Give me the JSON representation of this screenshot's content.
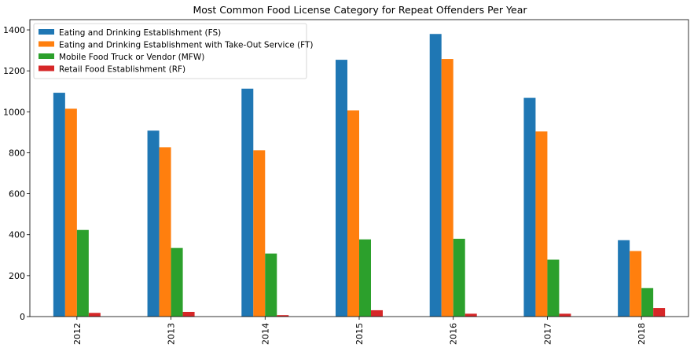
{
  "chart_data": {
    "type": "bar",
    "title": "Most Common Food License Category for Repeat Offenders Per Year",
    "xlabel": "",
    "ylabel": "",
    "categories": [
      "2012",
      "2013",
      "2014",
      "2015",
      "2016",
      "2017",
      "2018"
    ],
    "ylim": [
      0,
      1450
    ],
    "yticks": [
      0,
      200,
      400,
      600,
      800,
      1000,
      1200,
      1400
    ],
    "grid": false,
    "legend_position": "top-left",
    "series": [
      {
        "name": "Eating and Drinking Establishment (FS)",
        "color": "#1f77b4",
        "values": [
          1093,
          908,
          1113,
          1254,
          1380,
          1068,
          373
        ]
      },
      {
        "name": "Eating and Drinking Establishment with Take-Out Service (FT)",
        "color": "#ff7f0e",
        "values": [
          1015,
          827,
          812,
          1007,
          1258,
          904,
          320
        ]
      },
      {
        "name": "Mobile Food Truck or Vendor (MFW)",
        "color": "#2ca02c",
        "values": [
          423,
          335,
          308,
          377,
          380,
          278,
          139
        ]
      },
      {
        "name": "Retail Food Establishment (RF)",
        "color": "#d62728",
        "values": [
          18,
          23,
          7,
          31,
          14,
          14,
          42
        ]
      }
    ]
  }
}
